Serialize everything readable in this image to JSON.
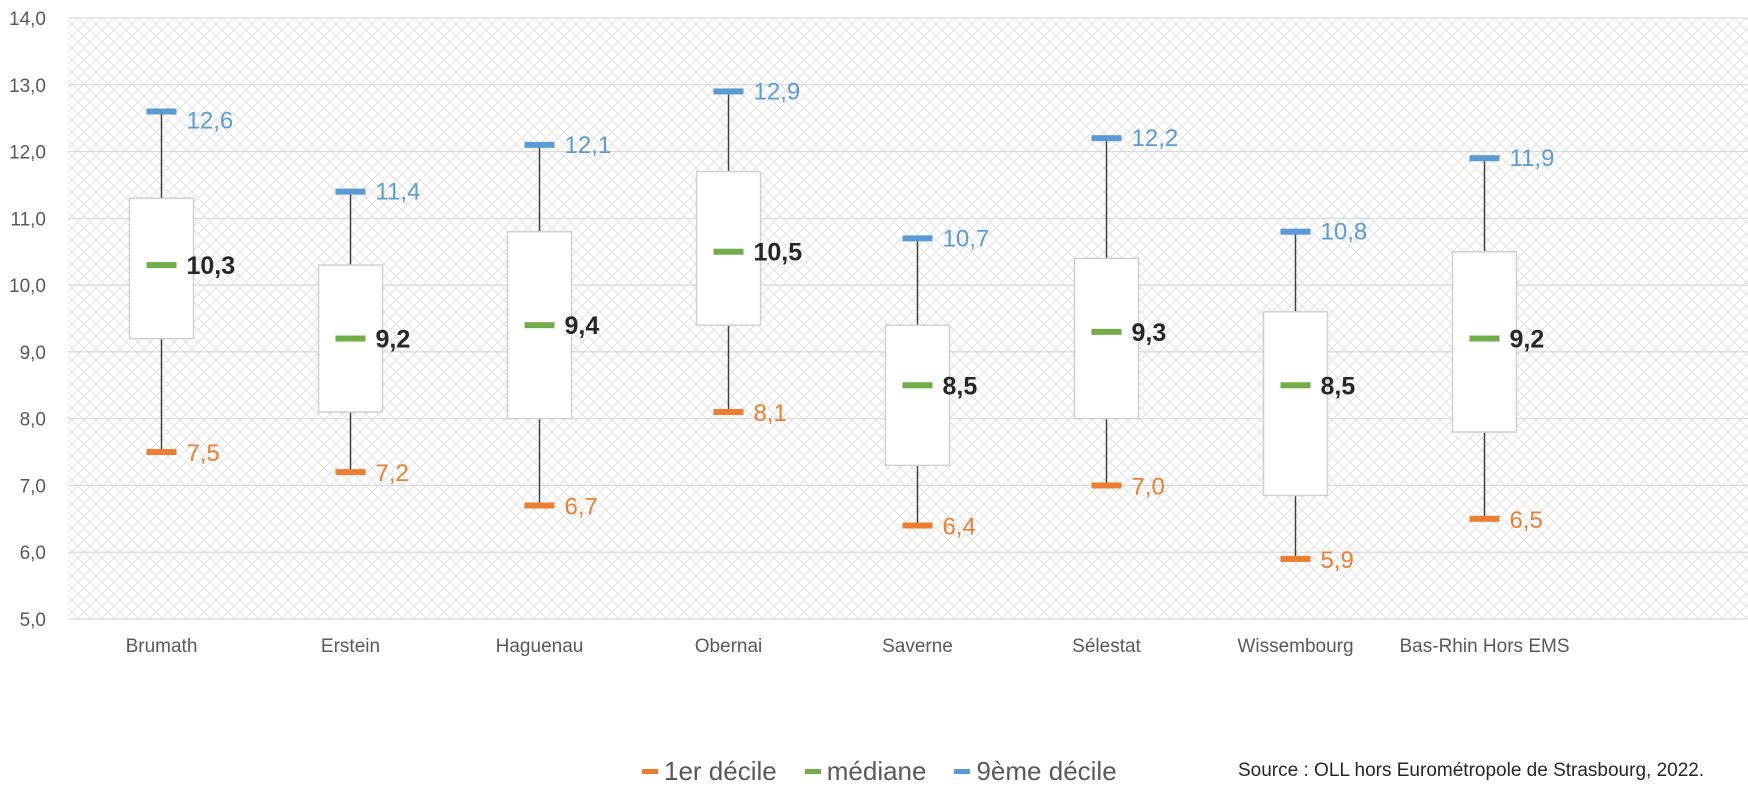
{
  "chart_data": {
    "type": "boxplot",
    "categories": [
      "Brumath",
      "Erstein",
      "Haguenau",
      "Obernai",
      "Saverne",
      "Sélestat",
      "Wissembourg",
      "Bas-Rhin Hors EMS"
    ],
    "series": [
      {
        "name": "1er décile",
        "color": "#ed7d31",
        "values": [
          7.5,
          7.2,
          6.7,
          8.1,
          6.4,
          7.0,
          5.9,
          6.5
        ],
        "labels": [
          "7,5",
          "7,2",
          "6,7",
          "8,1",
          "6,4",
          "7,0",
          "5,9",
          "6,5"
        ]
      },
      {
        "name": "médiane",
        "color": "#70ad47",
        "values": [
          10.3,
          9.2,
          9.4,
          10.5,
          8.5,
          9.3,
          8.5,
          9.2
        ],
        "labels": [
          "10,3",
          "9,2",
          "9,4",
          "10,5",
          "8,5",
          "9,3",
          "8,5",
          "9,2"
        ]
      },
      {
        "name": "9ème décile",
        "color": "#5b9bd5",
        "values": [
          12.6,
          11.4,
          12.1,
          12.9,
          10.7,
          12.2,
          10.8,
          11.9
        ],
        "labels": [
          "12,6",
          "11,4",
          "12,1",
          "12,9",
          "10,7",
          "12,2",
          "10,8",
          "11,9"
        ]
      }
    ],
    "quartiles": {
      "q1": [
        9.2,
        8.1,
        8.0,
        9.4,
        7.3,
        8.0,
        6.85,
        7.8
      ],
      "q3": [
        11.3,
        10.3,
        10.8,
        11.7,
        9.4,
        10.4,
        9.6,
        10.5
      ]
    },
    "yticks": [
      "5,0",
      "6,0",
      "7,0",
      "8,0",
      "9,0",
      "10,0",
      "11,0",
      "12,0",
      "13,0",
      "14,0"
    ],
    "ylim": [
      5,
      14
    ],
    "grid": true,
    "legend_position": "bottom"
  },
  "source": "Source : OLL hors Eurométropole de Strasbourg, 2022."
}
